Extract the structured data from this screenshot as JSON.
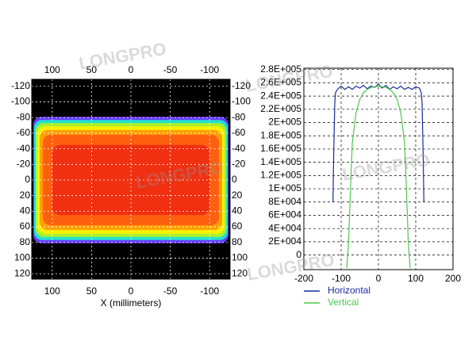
{
  "chart_data": [
    {
      "type": "heatmap",
      "x_label": "X (millimeters)",
      "xlim": [
        126,
        -126
      ],
      "ylim": [
        -129,
        127
      ],
      "xticks": [
        100,
        50,
        0,
        -50,
        -100
      ],
      "yticks": [
        -120,
        -100,
        -80,
        -60,
        -40,
        -20,
        0,
        20,
        40,
        60,
        80,
        100,
        120
      ],
      "background": "#000000",
      "grid": true,
      "zones": [
        {
          "color": "#6a3cff",
          "x": [
            124,
            -124
          ],
          "y": [
            -81,
            81
          ]
        },
        {
          "color": "#22e0d0",
          "x": [
            123,
            -123
          ],
          "y": [
            -77,
            77
          ]
        },
        {
          "color": "#a8f030",
          "x": [
            121,
            -121
          ],
          "y": [
            -73,
            73
          ]
        },
        {
          "color": "#f8f000",
          "x": [
            119,
            -119
          ],
          "y": [
            -69,
            69
          ]
        },
        {
          "color": "#ffa000",
          "x": [
            116,
            -116
          ],
          "y": [
            -64,
            64
          ]
        },
        {
          "color": "#ff6010",
          "x": [
            112,
            -112
          ],
          "y": [
            -58,
            58
          ]
        },
        {
          "color": "#f03010",
          "x": [
            100,
            -100
          ],
          "y": [
            -45,
            45
          ]
        }
      ]
    },
    {
      "type": "line",
      "xlim": [
        -200,
        200
      ],
      "ylim": [
        -22000,
        282000
      ],
      "xticks": [
        -200,
        -100,
        0,
        100,
        200
      ],
      "yticks": [
        0,
        {
          "value": 20000,
          "label": "2E+004"
        },
        {
          "value": 40000,
          "label": "4E+004"
        },
        {
          "value": 60000,
          "label": "6E+004"
        },
        {
          "value": 80000,
          "label": "8E+004"
        },
        {
          "value": 100000,
          "label": "1E+005"
        },
        {
          "value": 120000,
          "label": "1.2E+005"
        },
        {
          "value": 140000,
          "label": "1.4E+005"
        },
        {
          "value": 160000,
          "label": "1.6E+005"
        },
        {
          "value": 180000,
          "label": "1.8E+005"
        },
        {
          "value": 200000,
          "label": "2E+005"
        },
        {
          "value": 220000,
          "label": "2.2E+005"
        },
        {
          "value": 240000,
          "label": "2.4E+005"
        },
        {
          "value": 260000,
          "label": "2.6E+005"
        },
        {
          "value": 280000,
          "label": "2.8E+005"
        }
      ],
      "grid": true,
      "series": [
        {
          "name": "Horizontal",
          "color": "#1a2a9c",
          "x": [
            -122,
            -120,
            -117,
            -115,
            -110,
            -100,
            -90,
            -80,
            -70,
            -60,
            -50,
            -40,
            -30,
            -20,
            -10,
            0,
            10,
            20,
            30,
            40,
            50,
            60,
            70,
            80,
            90,
            100,
            110,
            115,
            117,
            120,
            122
          ],
          "values": [
            80000,
            150000,
            230000,
            245000,
            250000,
            255000,
            250000,
            254000,
            250000,
            255000,
            252000,
            256000,
            251000,
            255000,
            253000,
            258000,
            252000,
            256000,
            250000,
            254000,
            251000,
            255000,
            250000,
            253000,
            250000,
            254000,
            252000,
            245000,
            230000,
            150000,
            80000
          ]
        },
        {
          "name": "Vertical",
          "color": "#4cc94c",
          "x": [
            -85,
            -80,
            -75,
            -70,
            -60,
            -50,
            -40,
            -30,
            -20,
            -10,
            0,
            10,
            20,
            30,
            40,
            50,
            60,
            70,
            75,
            80,
            85
          ],
          "values": [
            -20000,
            20000,
            100000,
            170000,
            215000,
            235000,
            245000,
            250000,
            253000,
            254000,
            255000,
            254000,
            253000,
            250000,
            245000,
            235000,
            215000,
            170000,
            100000,
            20000,
            -20000
          ]
        }
      ]
    }
  ],
  "watermark": "LONGPRO"
}
